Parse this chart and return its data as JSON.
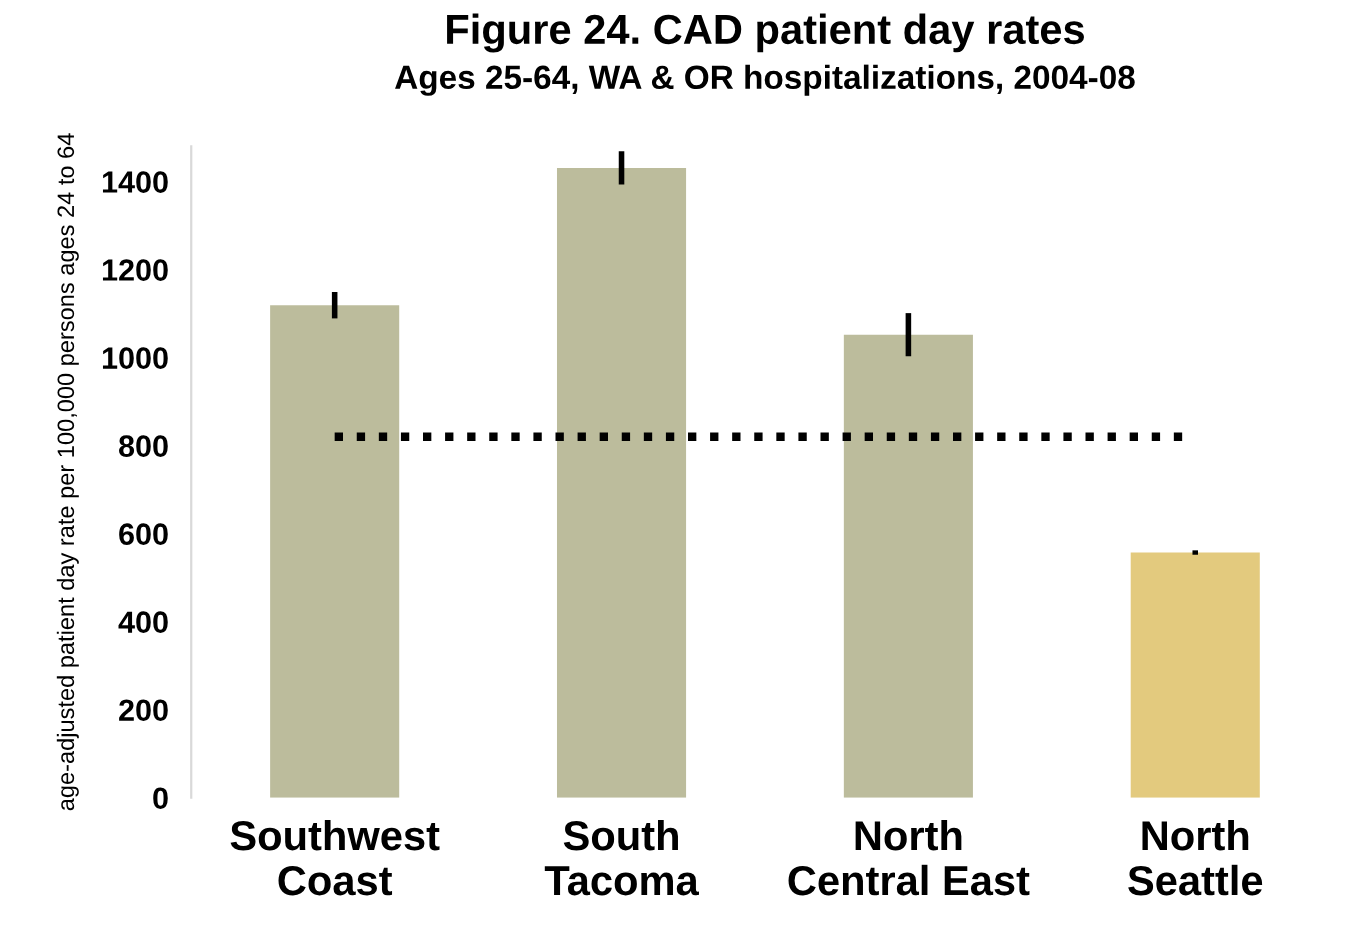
{
  "chart_data": {
    "type": "bar",
    "title": "Figure 24. CAD patient day rates",
    "subtitle": "Ages 25-64, WA & OR hospitalizations, 2004-08",
    "ylabel": "age-adjusted patient day rate per 100,000 persons ages 24 to 64",
    "categories": [
      "Southwest\nCoast",
      "South\nTacoma",
      "North\nCentral East",
      "North\nSeattle"
    ],
    "values": [
      1119,
      1431,
      1052,
      557
    ],
    "colors": [
      "#bcbc9c",
      "#bcbc9c",
      "#bcbc9c",
      "#e3ca7e"
    ],
    "errors": [
      30,
      38,
      49,
      5
    ],
    "ylim": [
      0,
      1480
    ],
    "yticks": [
      0,
      200,
      400,
      600,
      800,
      1000,
      1200,
      1400
    ],
    "grid": false,
    "ref_lines": [
      {
        "axis": "y",
        "value": 820,
        "color": "#000000",
        "line_style": "dotted"
      }
    ]
  }
}
